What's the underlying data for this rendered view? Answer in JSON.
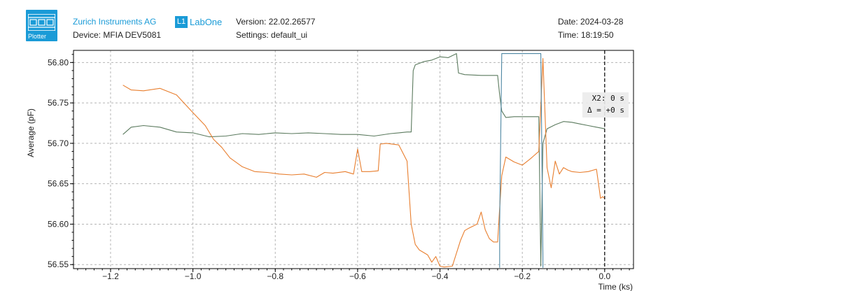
{
  "header": {
    "logo_text": "Plotter",
    "company": "Zurich Instruments AG",
    "brand_badge": "L1",
    "brand_name": "LabOne",
    "device": "Device: MFIA DEV5081",
    "version": "Version: 22.02.26577",
    "settings": "Settings: default_ui",
    "date": "Date: 2024-03-28",
    "time": "Time: 18:19:50"
  },
  "cursor": {
    "x2_label": "X2: 0 s",
    "delta_label": "Δ = +0 s",
    "x": 0.0
  },
  "chart_data": {
    "type": "line",
    "xlabel": "Time (ks)",
    "ylabel": "Average (pF)",
    "xlim": [
      -1.29,
      0.07
    ],
    "ylim": [
      56.545,
      56.815
    ],
    "x_ticks": [
      -1.2,
      -1.0,
      -0.8,
      -0.6,
      -0.4,
      -0.2,
      0.0
    ],
    "x_tick_labels": [
      "−1.2",
      "−1.0",
      "−0.8",
      "−0.6",
      "−0.4",
      "−0.2",
      "0.0"
    ],
    "y_ticks": [
      56.55,
      56.6,
      56.65,
      56.7,
      56.75,
      56.8
    ],
    "y_tick_labels": [
      "56.55",
      "56.60",
      "56.65",
      "56.70",
      "56.75",
      "56.80"
    ],
    "grid": true,
    "series": [
      {
        "color": "#5b7a5e",
        "x": [
          -1.17,
          -1.15,
          -1.12,
          -1.08,
          -1.04,
          -1.0,
          -0.96,
          -0.92,
          -0.88,
          -0.84,
          -0.8,
          -0.76,
          -0.72,
          -0.68,
          -0.64,
          -0.6,
          -0.56,
          -0.52,
          -0.5,
          -0.48,
          -0.47,
          -0.465,
          -0.46,
          -0.44,
          -0.42,
          -0.4,
          -0.38,
          -0.36,
          -0.355,
          -0.34,
          -0.3,
          -0.27,
          -0.26,
          -0.255,
          -0.25,
          -0.24,
          -0.22,
          -0.2,
          -0.18,
          -0.16,
          -0.155,
          -0.15,
          -0.14,
          -0.12,
          -0.1,
          -0.08,
          -0.06,
          -0.04,
          -0.02,
          0.0
        ],
        "y": [
          56.711,
          56.72,
          56.722,
          56.72,
          56.714,
          56.713,
          56.708,
          56.709,
          56.712,
          56.711,
          56.713,
          56.712,
          56.713,
          56.712,
          56.711,
          56.711,
          56.709,
          56.712,
          56.713,
          56.714,
          56.714,
          56.79,
          56.797,
          56.801,
          56.803,
          56.807,
          56.806,
          56.811,
          56.787,
          56.785,
          56.784,
          56.784,
          56.784,
          56.76,
          56.74,
          56.732,
          56.733,
          56.733,
          56.733,
          56.733,
          56.548,
          56.7,
          56.718,
          56.723,
          56.727,
          56.726,
          56.724,
          56.722,
          56.72,
          56.718
        ]
      },
      {
        "color": "#e87e2e",
        "x": [
          -1.17,
          -1.15,
          -1.12,
          -1.08,
          -1.04,
          -1.0,
          -0.97,
          -0.95,
          -0.93,
          -0.91,
          -0.88,
          -0.85,
          -0.82,
          -0.79,
          -0.76,
          -0.73,
          -0.7,
          -0.68,
          -0.66,
          -0.63,
          -0.61,
          -0.6,
          -0.59,
          -0.57,
          -0.55,
          -0.545,
          -0.53,
          -0.5,
          -0.48,
          -0.47,
          -0.46,
          -0.45,
          -0.43,
          -0.42,
          -0.41,
          -0.4,
          -0.39,
          -0.37,
          -0.35,
          -0.34,
          -0.33,
          -0.31,
          -0.3,
          -0.29,
          -0.28,
          -0.27,
          -0.26,
          -0.255,
          -0.25,
          -0.24,
          -0.22,
          -0.2,
          -0.18,
          -0.16,
          -0.15,
          -0.14,
          -0.13,
          -0.12,
          -0.11,
          -0.1,
          -0.09,
          -0.08,
          -0.06,
          -0.04,
          -0.02,
          -0.01,
          -0.005,
          0.0
        ],
        "y": [
          56.772,
          56.766,
          56.765,
          56.768,
          56.76,
          56.738,
          56.722,
          56.705,
          56.695,
          56.682,
          56.671,
          56.665,
          56.664,
          56.662,
          56.661,
          56.662,
          56.658,
          56.664,
          56.663,
          56.665,
          56.662,
          56.693,
          56.665,
          56.665,
          56.666,
          56.699,
          56.7,
          56.698,
          56.678,
          56.6,
          56.575,
          56.568,
          56.562,
          56.553,
          56.56,
          56.548,
          56.547,
          56.548,
          56.58,
          56.592,
          56.595,
          56.6,
          56.615,
          56.593,
          56.582,
          56.578,
          56.578,
          56.62,
          56.66,
          56.683,
          56.677,
          56.673,
          56.681,
          56.69,
          56.805,
          56.67,
          56.645,
          56.678,
          56.662,
          56.67,
          56.667,
          56.665,
          56.664,
          56.665,
          56.668,
          56.632,
          56.634,
          56.632
        ]
      },
      {
        "color": "#4e87a3",
        "x": [
          -0.255,
          -0.255,
          -0.25,
          -0.2,
          -0.155,
          -0.15,
          -0.15
        ],
        "y": [
          56.546,
          56.6,
          56.811,
          56.811,
          56.811,
          56.56,
          56.546
        ]
      }
    ]
  }
}
